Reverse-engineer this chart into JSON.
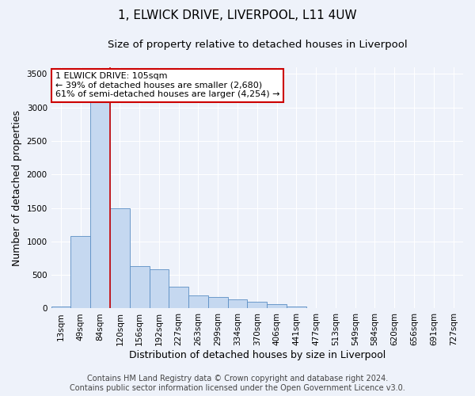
{
  "title": "1, ELWICK DRIVE, LIVERPOOL, L11 4UW",
  "subtitle": "Size of property relative to detached houses in Liverpool",
  "xlabel": "Distribution of detached houses by size in Liverpool",
  "ylabel": "Number of detached properties",
  "footer_line1": "Contains HM Land Registry data © Crown copyright and database right 2024.",
  "footer_line2": "Contains public sector information licensed under the Open Government Licence v3.0.",
  "bins": [
    "13sqm",
    "49sqm",
    "84sqm",
    "120sqm",
    "156sqm",
    "192sqm",
    "227sqm",
    "263sqm",
    "299sqm",
    "334sqm",
    "370sqm",
    "406sqm",
    "441sqm",
    "477sqm",
    "513sqm",
    "549sqm",
    "584sqm",
    "620sqm",
    "656sqm",
    "691sqm",
    "727sqm"
  ],
  "bar_heights": [
    30,
    1080,
    3270,
    1490,
    630,
    580,
    330,
    200,
    175,
    135,
    100,
    60,
    30,
    10,
    5,
    2,
    1,
    0,
    0,
    0,
    0
  ],
  "bar_color": "#c5d8f0",
  "bar_edge_color": "#5b8ec4",
  "ylim": [
    0,
    3600
  ],
  "yticks": [
    0,
    500,
    1000,
    1500,
    2000,
    2500,
    3000,
    3500
  ],
  "property_line_x": 2.5,
  "annotation_text1": "1 ELWICK DRIVE: 105sqm",
  "annotation_text2": "← 39% of detached houses are smaller (2,680)",
  "annotation_text3": "61% of semi-detached houses are larger (4,254) →",
  "annotation_box_color": "#ffffff",
  "annotation_border_color": "#cc0000",
  "red_line_color": "#cc0000",
  "background_color": "#eef2fa",
  "grid_color": "#ffffff",
  "title_fontsize": 11,
  "subtitle_fontsize": 9.5,
  "tick_fontsize": 7.5,
  "label_fontsize": 9,
  "footer_fontsize": 7,
  "ann_fontsize": 8
}
